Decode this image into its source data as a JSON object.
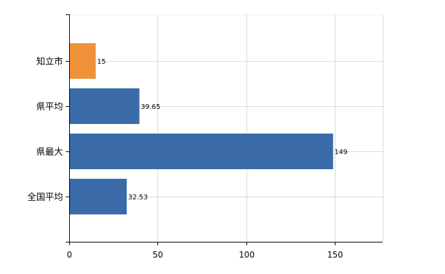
{
  "chart_data": {
    "type": "bar",
    "orientation": "horizontal",
    "categories": [
      "知立市",
      "県平均",
      "県最大",
      "全国平均"
    ],
    "values": [
      15,
      39.65,
      149,
      32.53
    ],
    "value_labels": [
      "15",
      "39.65",
      "149",
      "32.53"
    ],
    "bar_colors": [
      "#f0923a",
      "#3a6ba8",
      "#3a6ba8",
      "#3a6ba8"
    ],
    "xlim": [
      0,
      177
    ],
    "xticks": [
      0,
      50,
      100,
      150
    ],
    "xtick_labels": [
      "0",
      "50",
      "100",
      "150"
    ],
    "grid": true,
    "title": "",
    "xlabel": "",
    "ylabel": ""
  }
}
